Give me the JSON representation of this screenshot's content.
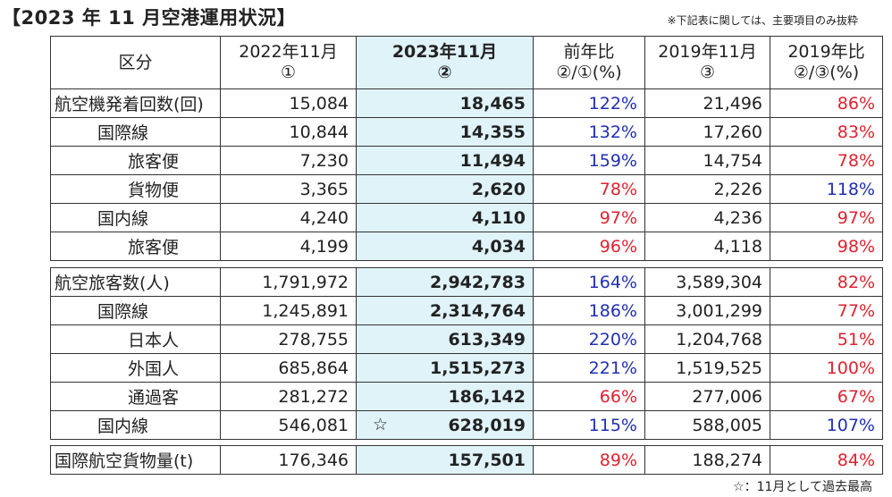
{
  "title": "【2023 年 11 月空港運用状況】",
  "note_top": "※下記表に関しては、主要項目のみ抜粋",
  "note_bottom": "☆：11月として過去最高",
  "header": {
    "col_label": "区分",
    "col_2022": [
      "2022年11月",
      "①"
    ],
    "col_2023": [
      "2023年11月",
      "②"
    ],
    "col_yoy": [
      "前年比",
      "②/①(%)"
    ],
    "col_2019": [
      "2019年11月",
      "③"
    ],
    "col_vs2019": [
      "2019年比",
      "②/③(%)"
    ]
  },
  "colors": {
    "blue": "#1f2fb5",
    "red": "#e0222f",
    "highlight": "#dff3f9"
  },
  "section1": [
    {
      "label": "航空機発着回数(回)",
      "indent": 0,
      "v2022": "15,084",
      "v2023": "18,465",
      "yoy": "122%",
      "yoy_color": "blue",
      "v2019": "21,496",
      "vs2019": "86%",
      "vs2019_color": "red"
    },
    {
      "label": "国際線",
      "indent": 1,
      "v2022": "10,844",
      "v2023": "14,355",
      "yoy": "132%",
      "yoy_color": "blue",
      "v2019": "17,260",
      "vs2019": "83%",
      "vs2019_color": "red"
    },
    {
      "label": "旅客便",
      "indent": 2,
      "v2022": "7,230",
      "v2023": "11,494",
      "yoy": "159%",
      "yoy_color": "blue",
      "v2019": "14,754",
      "vs2019": "78%",
      "vs2019_color": "red"
    },
    {
      "label": "貨物便",
      "indent": 2,
      "v2022": "3,365",
      "v2023": "2,620",
      "yoy": "78%",
      "yoy_color": "red",
      "v2019": "2,226",
      "vs2019": "118%",
      "vs2019_color": "blue"
    },
    {
      "label": "国内線",
      "indent": 1,
      "v2022": "4,240",
      "v2023": "4,110",
      "yoy": "97%",
      "yoy_color": "red",
      "v2019": "4,236",
      "vs2019": "97%",
      "vs2019_color": "red"
    },
    {
      "label": "旅客便",
      "indent": 2,
      "v2022": "4,199",
      "v2023": "4,034",
      "yoy": "96%",
      "yoy_color": "red",
      "v2019": "4,118",
      "vs2019": "98%",
      "vs2019_color": "red"
    }
  ],
  "section2": [
    {
      "label": "航空旅客数(人)",
      "indent": 0,
      "v2022": "1,791,972",
      "v2023": "2,942,783",
      "yoy": "164%",
      "yoy_color": "blue",
      "v2019": "3,589,304",
      "vs2019": "82%",
      "vs2019_color": "red"
    },
    {
      "label": "国際線",
      "indent": 1,
      "v2022": "1,245,891",
      "v2023": "2,314,764",
      "yoy": "186%",
      "yoy_color": "blue",
      "v2019": "3,001,299",
      "vs2019": "77%",
      "vs2019_color": "red"
    },
    {
      "label": "日本人",
      "indent": 2,
      "v2022": "278,755",
      "v2023": "613,349",
      "yoy": "220%",
      "yoy_color": "blue",
      "v2019": "1,204,768",
      "vs2019": "51%",
      "vs2019_color": "red"
    },
    {
      "label": "外国人",
      "indent": 2,
      "v2022": "685,864",
      "v2023": "1,515,273",
      "yoy": "221%",
      "yoy_color": "blue",
      "v2019": "1,519,525",
      "vs2019": "100%",
      "vs2019_color": "red"
    },
    {
      "label": "通過客",
      "indent": 2,
      "v2022": "281,272",
      "v2023": "186,142",
      "yoy": "66%",
      "yoy_color": "red",
      "v2019": "277,006",
      "vs2019": "67%",
      "vs2019_color": "red"
    },
    {
      "label": "国内線",
      "indent": 1,
      "v2022": "546,081",
      "v2023": "628,019",
      "star": "☆",
      "yoy": "115%",
      "yoy_color": "blue",
      "v2019": "588,005",
      "vs2019": "107%",
      "vs2019_color": "blue"
    }
  ],
  "section3": [
    {
      "label": "国際航空貨物量(t)",
      "indent": 0,
      "v2022": "176,346",
      "v2023": "157,501",
      "yoy": "89%",
      "yoy_color": "red",
      "v2019": "188,274",
      "vs2019": "84%",
      "vs2019_color": "red"
    }
  ]
}
